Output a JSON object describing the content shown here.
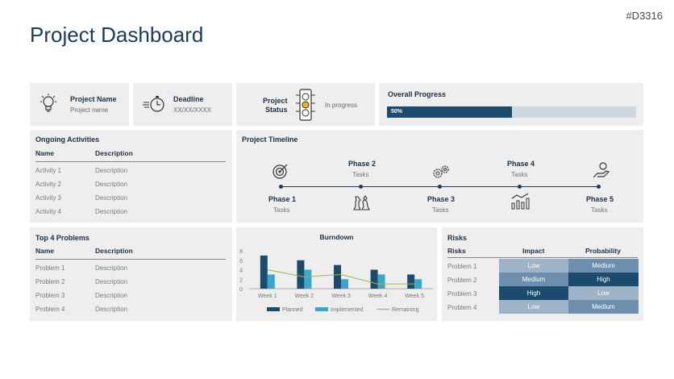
{
  "code": "#D3316",
  "title": "Project Dashboard",
  "project_name": {
    "label": "Project Name",
    "value": "Project name"
  },
  "deadline": {
    "label": "Deadline",
    "value": "XX/XX/XXXX"
  },
  "status": {
    "label_line1": "Project",
    "label_line2": "Status",
    "value": "In progress"
  },
  "progress": {
    "label": "Overall Progress",
    "value_text": "50%",
    "fraction": 0.5
  },
  "activities": {
    "title": "Ongoing Activities",
    "col_name": "Name",
    "col_desc": "Description",
    "rows": [
      {
        "name": "Activity 1",
        "desc": "Description"
      },
      {
        "name": "Activity 2",
        "desc": "Description"
      },
      {
        "name": "Activity 3",
        "desc": "Description"
      },
      {
        "name": "Activity 4",
        "desc": "Description"
      }
    ]
  },
  "timeline": {
    "title": "Project Timeline",
    "phases": [
      {
        "name": "Phase 1",
        "text": "Tasks",
        "icon": "target-icon"
      },
      {
        "name": "Phase 2",
        "text": "Tasks",
        "icon": "chess-icon"
      },
      {
        "name": "Phase 3",
        "text": "Tasks",
        "icon": "gears-icon"
      },
      {
        "name": "Phase 4",
        "text": "Tasks",
        "icon": "chart-icon"
      },
      {
        "name": "Phase 5",
        "text": "Tasks",
        "icon": "hand-coin-icon"
      }
    ]
  },
  "problems": {
    "title": "Top 4 Problems",
    "col_name": "Name",
    "col_desc": "Description",
    "rows": [
      {
        "name": "Problem 1",
        "desc": "Description"
      },
      {
        "name": "Problem 2",
        "desc": "Description"
      },
      {
        "name": "Problem 3",
        "desc": "Description"
      },
      {
        "name": "Problem 4",
        "desc": "Description"
      }
    ]
  },
  "chart_data": {
    "type": "bar",
    "title": "Burndown",
    "categories": [
      "Week 1",
      "Week 2",
      "Week 3",
      "Week 4",
      "Week 5"
    ],
    "yticks": [
      0,
      2,
      4,
      6,
      8
    ],
    "ylim": [
      0,
      8
    ],
    "series": [
      {
        "name": "Planned",
        "kind": "bar",
        "color": "#1c4b6e",
        "values": [
          7,
          6,
          5,
          4,
          3
        ]
      },
      {
        "name": "Implemented",
        "kind": "bar",
        "color": "#3aa6c8",
        "values": [
          3,
          4,
          2,
          3,
          2
        ]
      },
      {
        "name": "Remaining",
        "kind": "line",
        "color": "#9bb84a",
        "values": [
          4,
          2.5,
          3,
          1,
          1
        ]
      }
    ]
  },
  "risks": {
    "title": "Risks",
    "col_risk": "Risks",
    "col_impact": "Impact",
    "col_prob": "Probability",
    "rows": [
      {
        "name": "Problem 1",
        "impact": "Low",
        "prob": "Medium",
        "impact_color": "#9fb3c8",
        "prob_color": "#6e8eae"
      },
      {
        "name": "Problem 2",
        "impact": "Medium",
        "prob": "High",
        "impact_color": "#6e8eae",
        "prob_color": "#1c4b6e"
      },
      {
        "name": "Problem 3",
        "impact": "High",
        "prob": "Low",
        "impact_color": "#1c4b6e",
        "prob_color": "#9fb3c8"
      },
      {
        "name": "Problem 4",
        "impact": "Low",
        "prob": "Medium",
        "impact_color": "#9fb3c8",
        "prob_color": "#6e8eae"
      }
    ]
  }
}
